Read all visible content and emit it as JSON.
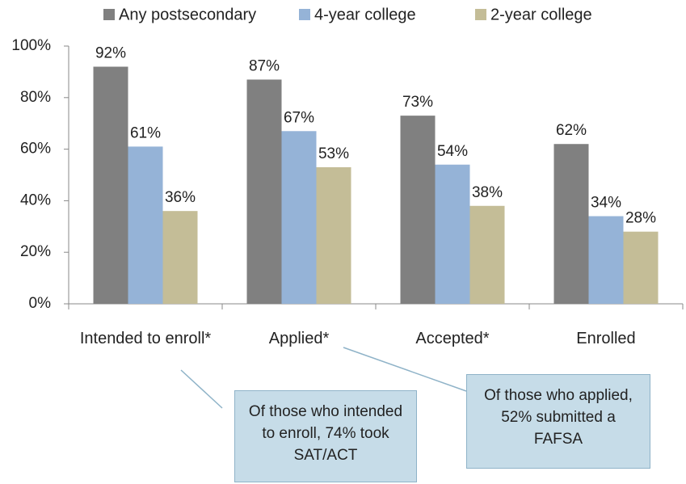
{
  "chart_data": {
    "type": "bar",
    "categories": [
      "Intended to enroll*",
      "Applied*",
      "Accepted*",
      "Enrolled"
    ],
    "series": [
      {
        "name": "Any postsecondary",
        "color": "#808080",
        "values": [
          92,
          87,
          73,
          62
        ],
        "value_labels": [
          "92%",
          "87%",
          "73%",
          "62%"
        ]
      },
      {
        "name": "4-year college",
        "color": "#95b3d7",
        "values": [
          61,
          67,
          54,
          34
        ],
        "value_labels": [
          "61%",
          "67%",
          "54%",
          "34%"
        ]
      },
      {
        "name": "2-year college",
        "color": "#c4bd97",
        "values": [
          36,
          53,
          38,
          28
        ],
        "value_labels": [
          "36%",
          "53%",
          "38%",
          "28%"
        ]
      }
    ],
    "ylim": [
      0,
      100
    ],
    "yticks": [
      {
        "value": 0,
        "label": "0%"
      },
      {
        "value": 20,
        "label": "20%"
      },
      {
        "value": 40,
        "label": "40%"
      },
      {
        "value": 60,
        "label": "60%"
      },
      {
        "value": 80,
        "label": "80%"
      },
      {
        "value": 100,
        "label": "100%"
      }
    ],
    "legend": "top",
    "annotations": [
      "Of those who intended to enroll, 74% took SAT/ACT",
      "Of those who applied, 52% submitted a FAFSA"
    ]
  }
}
